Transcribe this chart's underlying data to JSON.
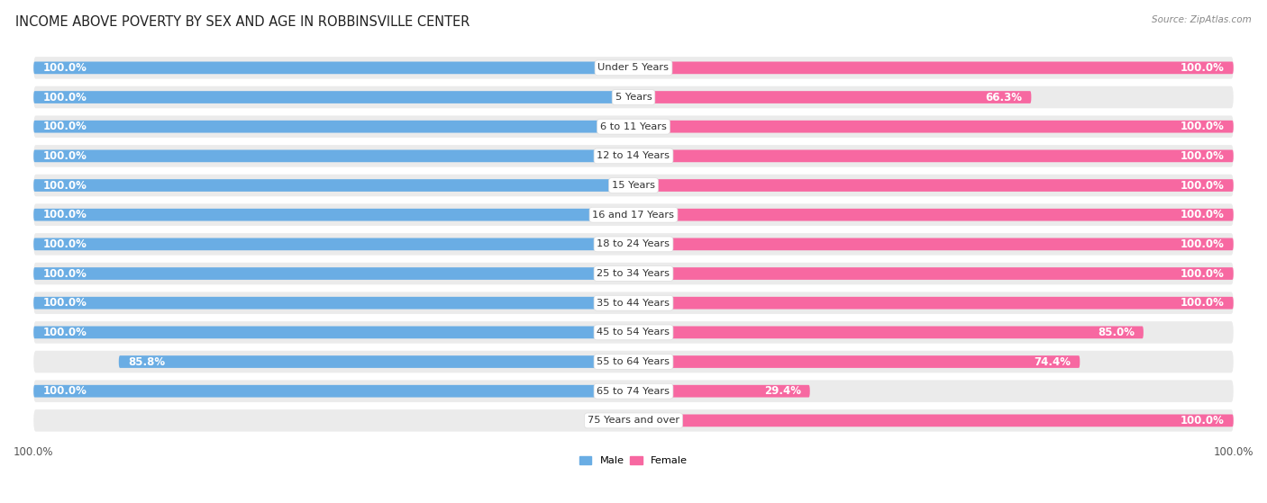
{
  "title": "INCOME ABOVE POVERTY BY SEX AND AGE IN ROBBINSVILLE CENTER",
  "source": "Source: ZipAtlas.com",
  "categories": [
    "Under 5 Years",
    "5 Years",
    "6 to 11 Years",
    "12 to 14 Years",
    "15 Years",
    "16 and 17 Years",
    "18 to 24 Years",
    "25 to 34 Years",
    "35 to 44 Years",
    "45 to 54 Years",
    "55 to 64 Years",
    "65 to 74 Years",
    "75 Years and over"
  ],
  "male": [
    100.0,
    100.0,
    100.0,
    100.0,
    100.0,
    100.0,
    100.0,
    100.0,
    100.0,
    100.0,
    85.8,
    100.0,
    0.0
  ],
  "female": [
    100.0,
    66.3,
    100.0,
    100.0,
    100.0,
    100.0,
    100.0,
    100.0,
    100.0,
    85.0,
    74.4,
    29.4,
    100.0
  ],
  "male_color": "#6aade4",
  "female_color": "#f768a1",
  "male_color_light": "#c5dff5",
  "female_color_light": "#fdd5e8",
  "background_color": "#ffffff",
  "row_bg_color": "#ebebeb",
  "legend_labels": [
    "Male",
    "Female"
  ],
  "title_fontsize": 10.5,
  "label_fontsize": 8.2,
  "tick_fontsize": 8.5,
  "value_fontsize": 8.5,
  "cat_fontsize": 8.2
}
